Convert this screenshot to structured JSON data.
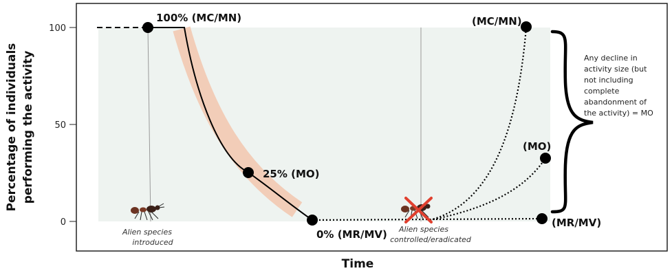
{
  "chart_data": {
    "type": "line",
    "xlabel": "Time",
    "ylabel_line1": "Percentage of individuals",
    "ylabel_line2": "performing the activity",
    "y_ticks": [
      "0",
      "50",
      "100"
    ],
    "ylim": [
      0,
      100
    ],
    "events": [
      {
        "line1": "Alien species",
        "line2": "introduced"
      },
      {
        "line1": "Alien species",
        "line2": "controlled/eradicated"
      }
    ],
    "points": [
      {
        "label": "100% (MC/MN)",
        "y": 100
      },
      {
        "label": "25% (MO)",
        "y": 25
      },
      {
        "label": "0% (MR/MV)",
        "y": 0
      },
      {
        "label": "(MC/MN)",
        "y": 100
      },
      {
        "label": "(MO)",
        "y": 33
      },
      {
        "label": "(MR/MV)",
        "y": 1
      }
    ],
    "brace_note": [
      "Any decline in",
      "activity size (but",
      "not including",
      "complete",
      "abandonment of",
      "the activity) = MO"
    ],
    "colors": {
      "band": "#f2cdb8",
      "area": "#eef3f0",
      "cross": "#e0402f",
      "line": "#000000"
    }
  }
}
